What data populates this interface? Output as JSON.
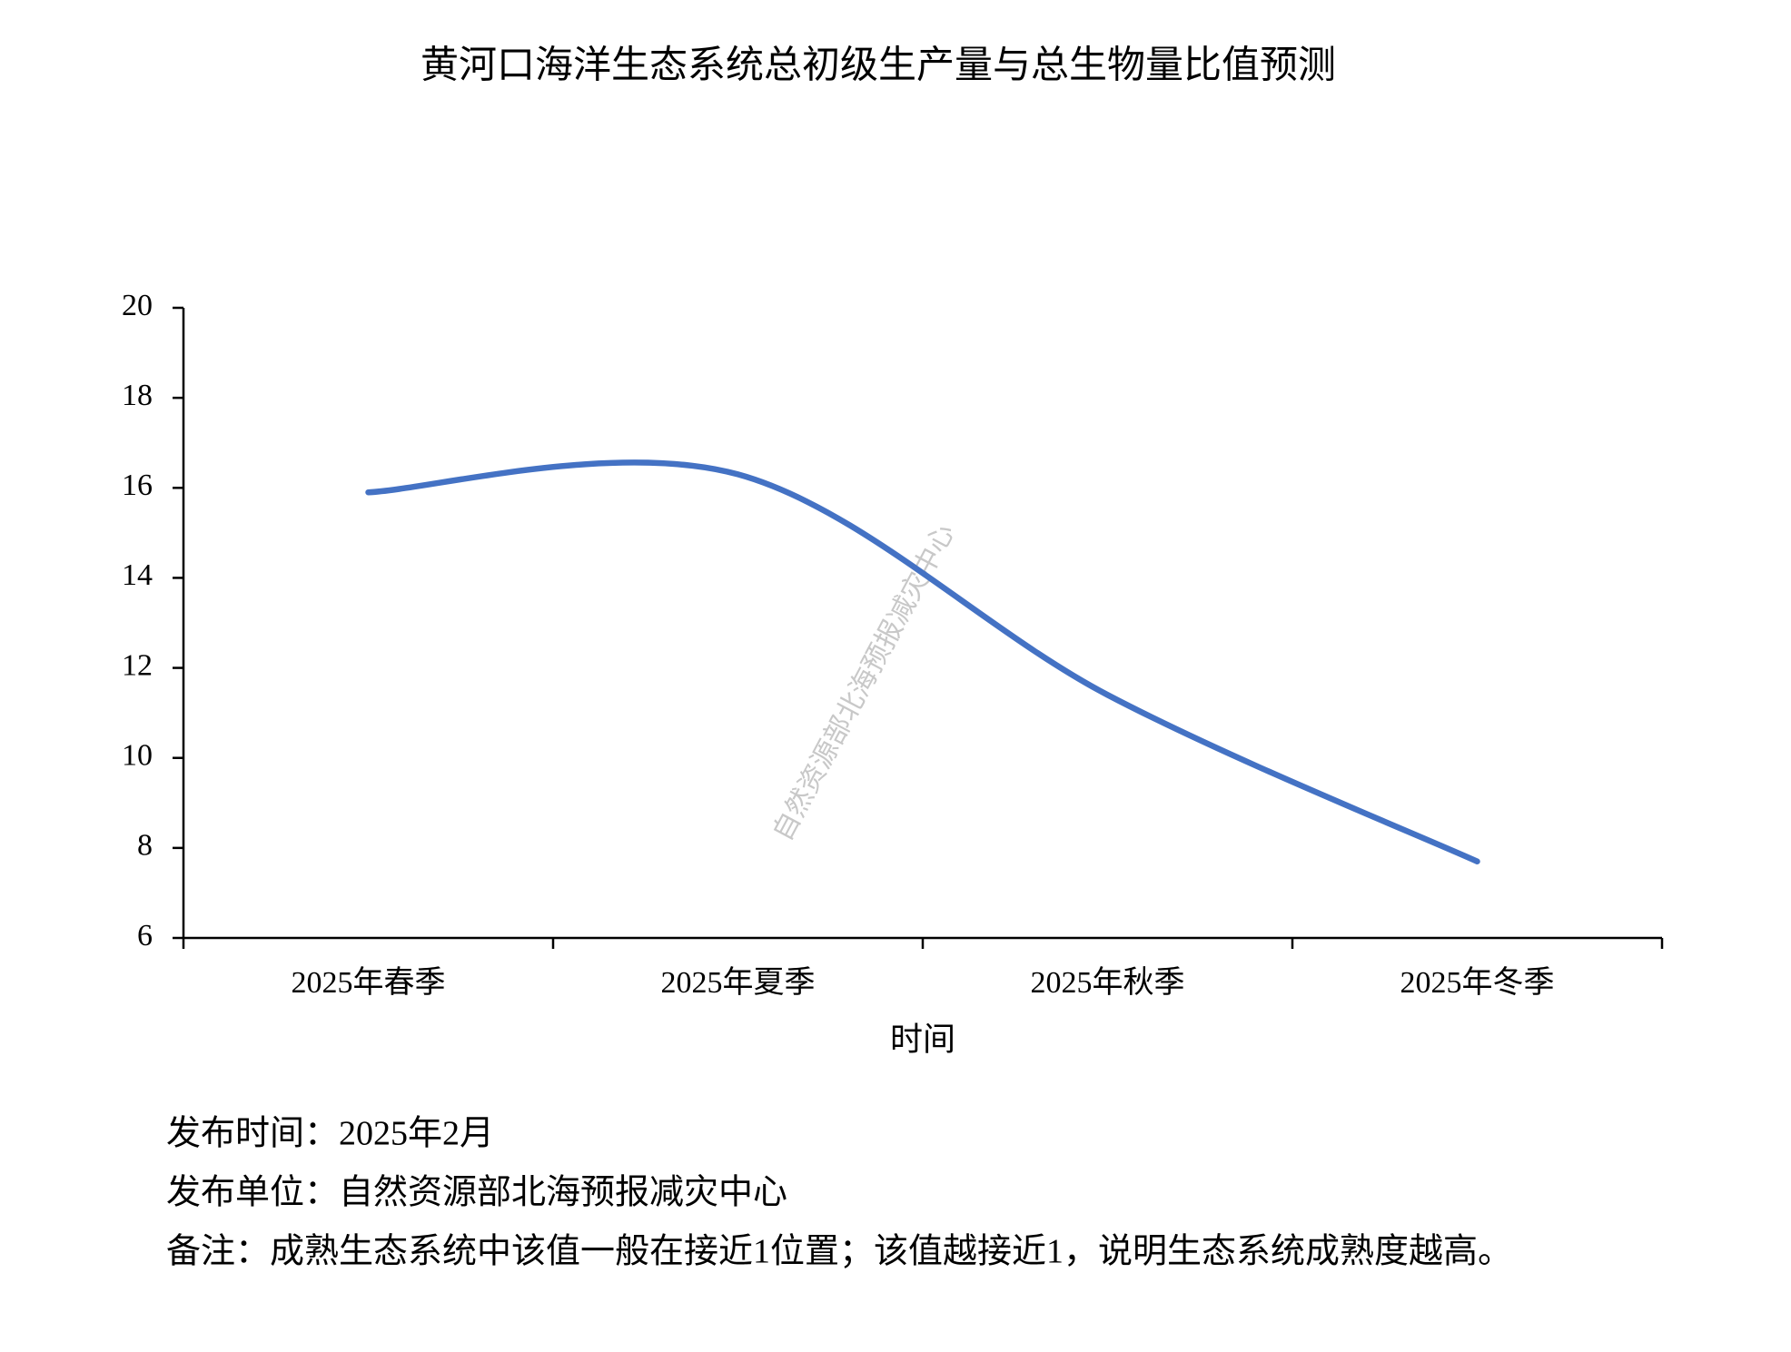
{
  "chart_data": {
    "type": "line",
    "title": "黄河口海洋生态系统总初级生产量与总生物量比值预测",
    "xlabel": "时间",
    "categories": [
      "2025年春季",
      "2025年夏季",
      "2025年秋季",
      "2025年冬季"
    ],
    "series": [
      {
        "color": "#4472c4",
        "values": [
          15.9,
          16.3,
          11.4,
          7.7
        ]
      }
    ],
    "smooth": true,
    "ylim": [
      6,
      20
    ],
    "yticks": [
      6,
      8,
      10,
      12,
      14,
      16,
      18,
      20
    ],
    "grid": false,
    "watermark": "自然资源部北海预报减灾中心",
    "notes": [
      "发布时间：2025年2月",
      "发布单位：自然资源部北海预报减灾中心",
      "备注：成熟生态系统中该值一般在接近1位置；该值越接近1，说明生态系统成熟度越高。"
    ]
  }
}
